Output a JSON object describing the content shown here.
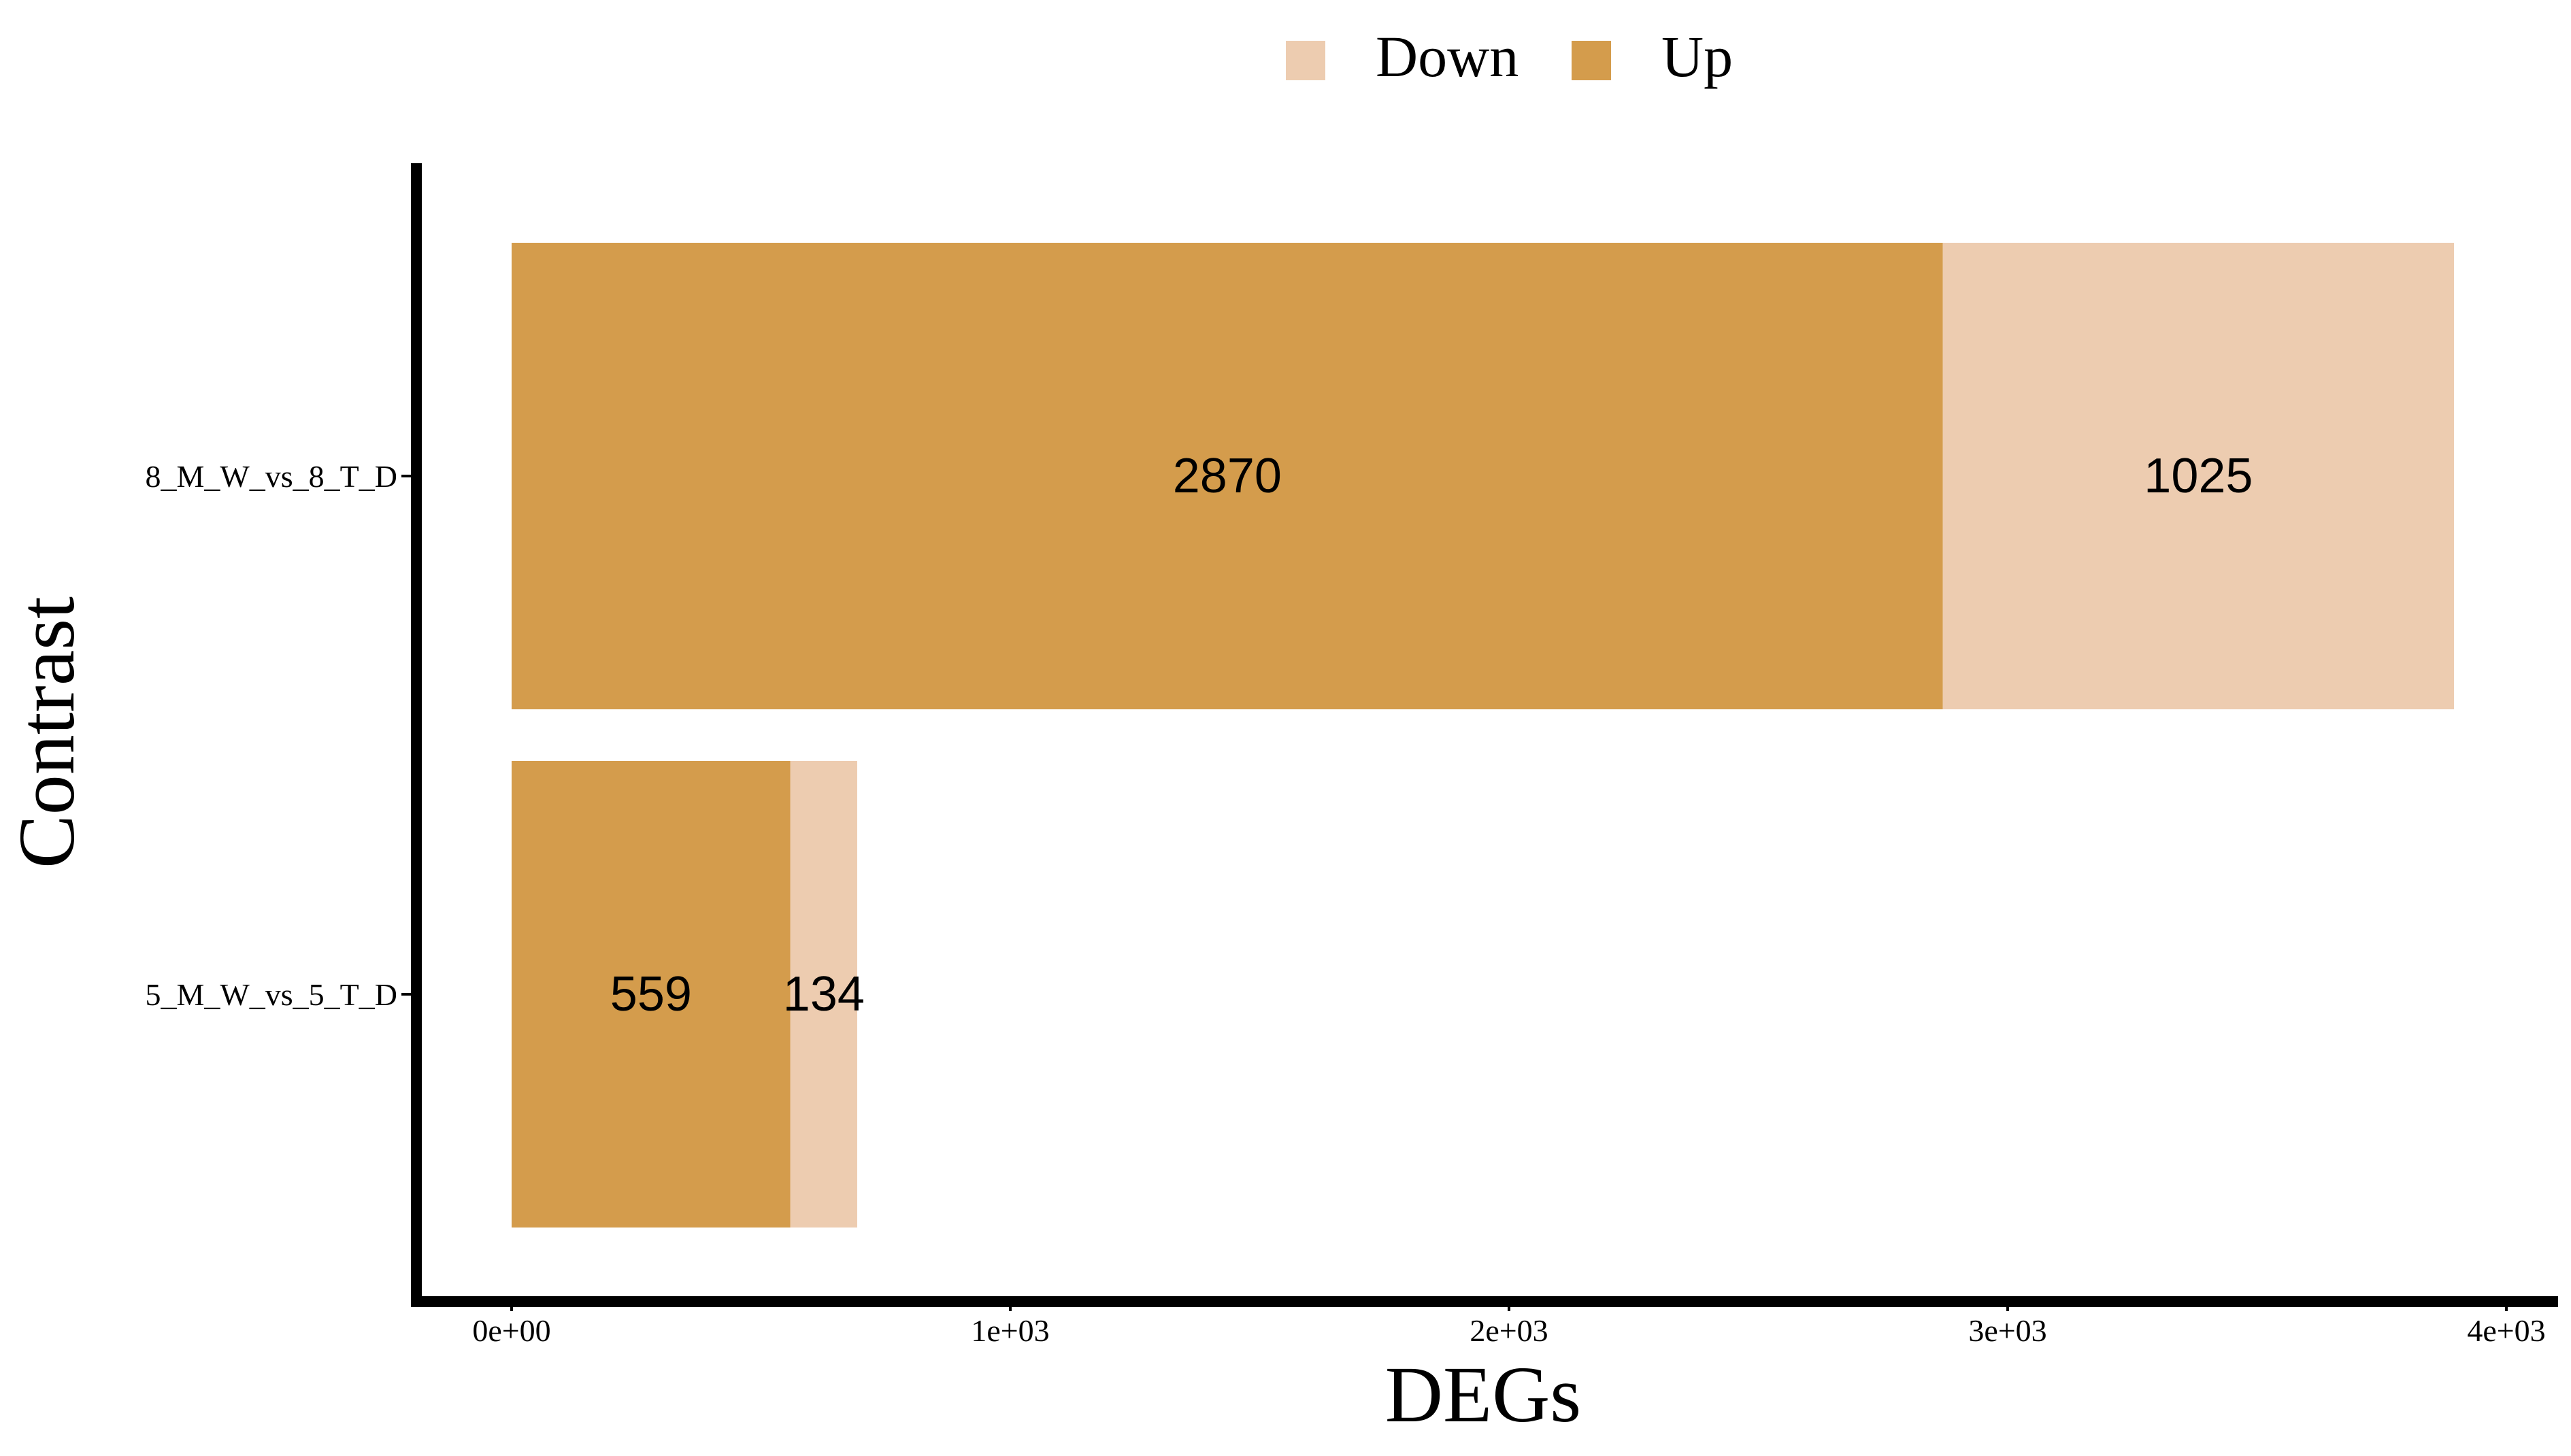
{
  "chart_data": {
    "type": "bar",
    "orientation": "horizontal",
    "stacked": true,
    "categories": [
      "5_M_W_vs_5_T_D",
      "8_M_W_vs_8_T_D"
    ],
    "series": [
      {
        "name": "Up",
        "values": [
          559,
          2870
        ],
        "color": "#d49c4c"
      },
      {
        "name": "Down",
        "values": [
          134,
          1025
        ],
        "color": "#edccb0"
      }
    ],
    "legend_order": [
      "Down",
      "Up"
    ],
    "xlabel": "DEGs",
    "ylabel": "Contrast",
    "xlim": [
      0,
      4000
    ],
    "x_ticks": [
      0,
      1000,
      2000,
      3000,
      4000
    ],
    "x_tick_labels": [
      "0e+00",
      "1e+03",
      "2e+03",
      "3e+03",
      "4e+03"
    ],
    "legend_position": "top",
    "grid": false
  }
}
